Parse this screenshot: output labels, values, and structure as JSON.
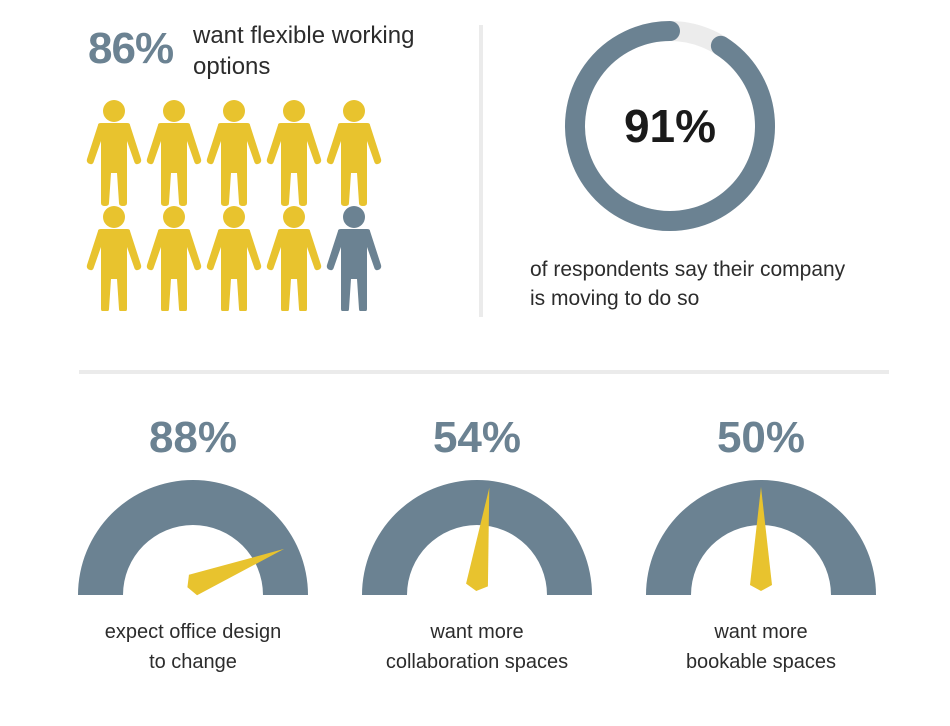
{
  "flexible": {
    "percent_text": "86%",
    "caption": "want flexible working options",
    "people_total": 10,
    "people_highlighted": 9
  },
  "company": {
    "percent_text": "91%",
    "value": 91,
    "caption": "of respondents say their company is moving to do so"
  },
  "gauges": [
    {
      "percent_text": "88%",
      "value": 88,
      "caption_line1": "expect office design",
      "caption_line2": "to change"
    },
    {
      "percent_text": "54%",
      "value": 54,
      "caption_line1": "want more",
      "caption_line2": "collaboration spaces"
    },
    {
      "percent_text": "50%",
      "value": 50,
      "caption_line1": "want more",
      "caption_line2": "bookable spaces"
    }
  ],
  "colors": {
    "highlight": "#e8c32e",
    "slate": "#6b8292",
    "track": "#ececec",
    "text": "#2c2c2c"
  },
  "chart_data": [
    {
      "type": "pictogram",
      "title": "want flexible working options",
      "values": [
        86
      ],
      "icons_total": 10,
      "icons_highlighted": 9
    },
    {
      "type": "donut",
      "values": [
        91
      ],
      "ylim": [
        0,
        100
      ],
      "annotation": "of respondents say their company is moving to do so"
    },
    {
      "type": "gauge",
      "categories": [
        "expect office design to change",
        "want more collaboration spaces",
        "want more bookable spaces"
      ],
      "values": [
        88,
        54,
        50
      ],
      "ylim": [
        0,
        100
      ]
    }
  ]
}
